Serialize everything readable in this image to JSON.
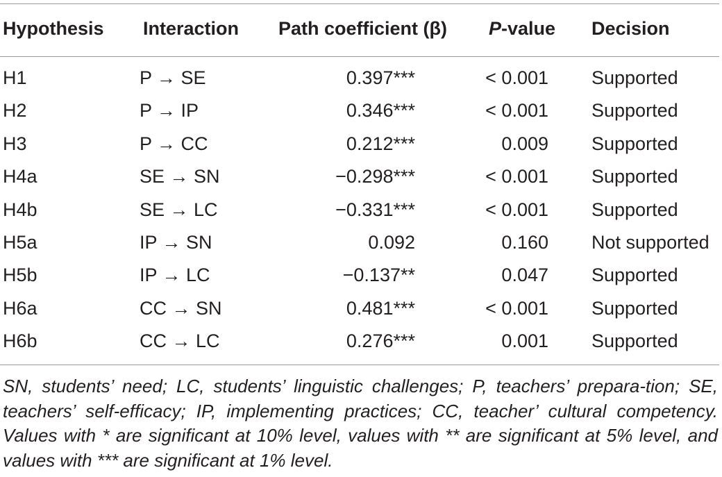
{
  "table": {
    "headers": {
      "hypothesis": "Hypothesis",
      "interaction": "Interaction",
      "coefficient": "Path coefficient (β)",
      "pvalue_p": "P",
      "pvalue_rest": "-value",
      "decision": "Decision"
    },
    "rows": [
      {
        "hypothesis": "H1",
        "interaction": "P → SE",
        "coefficient": "0.397***",
        "pvalue": "< 0.001",
        "decision": "Supported"
      },
      {
        "hypothesis": "H2",
        "interaction": "P → IP",
        "coefficient": "0.346***",
        "pvalue": "< 0.001",
        "decision": "Supported"
      },
      {
        "hypothesis": "H3",
        "interaction": "P → CC",
        "coefficient": "0.212***",
        "pvalue": "0.009",
        "decision": "Supported"
      },
      {
        "hypothesis": "H4a",
        "interaction": "SE → SN",
        "coefficient": "−0.298***",
        "pvalue": "< 0.001",
        "decision": "Supported"
      },
      {
        "hypothesis": "H4b",
        "interaction": "SE → LC",
        "coefficient": "−0.331***",
        "pvalue": "< 0.001",
        "decision": "Supported"
      },
      {
        "hypothesis": "H5a",
        "interaction": "IP → SN",
        "coefficient": "0.092",
        "pvalue": "0.160",
        "decision": "Not supported"
      },
      {
        "hypothesis": "H5b",
        "interaction": "IP → LC",
        "coefficient": "−0.137**",
        "pvalue": "0.047",
        "decision": "Supported"
      },
      {
        "hypothesis": "H6a",
        "interaction": "CC → SN",
        "coefficient": "0.481***",
        "pvalue": "< 0.001",
        "decision": "Supported"
      },
      {
        "hypothesis": "H6b",
        "interaction": "CC → LC",
        "coefficient": "0.276***",
        "pvalue": "0.001",
        "decision": "Supported"
      }
    ],
    "footnote": "SN, students’ need; LC, students’ linguistic challenges; P, teachers’ prepara-tion; SE, teachers’ self-efficacy; IP, implementing practices; CC, teacher’ cultural competency. Values with * are significant at 10% level, values with ** are significant at 5% level, and values with *** are significant at 1% level."
  }
}
